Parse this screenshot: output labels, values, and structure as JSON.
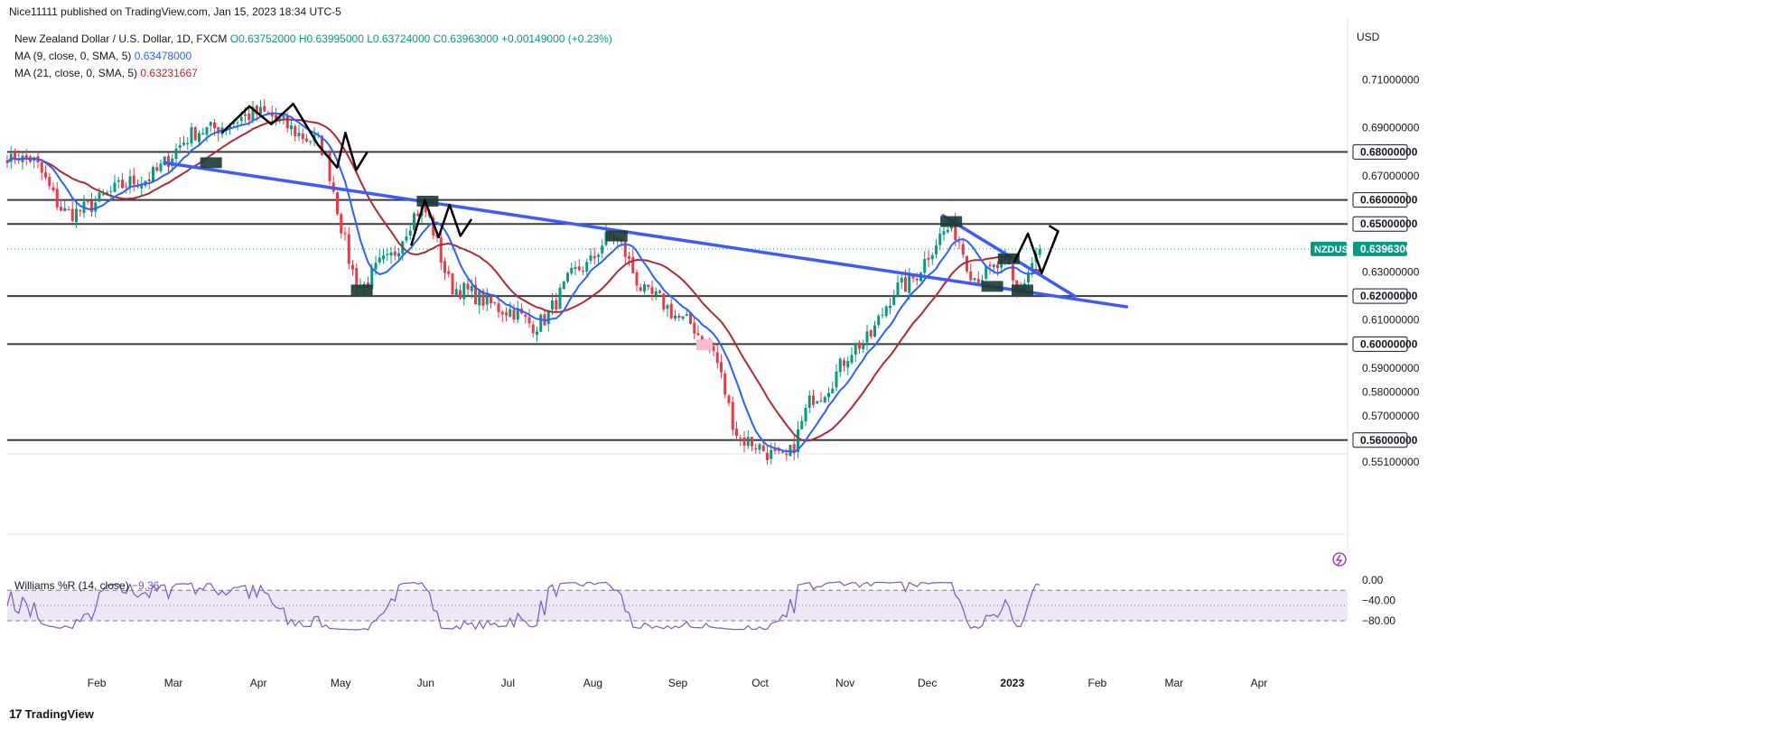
{
  "header": {
    "publisher": "Nice11111 published on TradingView.com, Jan 15, 2023 18:34 UTC-5"
  },
  "legend": {
    "symbol": "New Zealand Dollar / U.S. Dollar, 1D, FXCM",
    "ohlc": "O0.63752000 H0.63995000 L0.63724000 C0.63963000 +0.00149000 (+0.23%)",
    "ma9_label": "MA (9, close, 0, SMA, 5)",
    "ma9_value": "0.63478000",
    "ma21_label": "MA (21, close, 0, SMA, 5)",
    "ma21_value": "0.63231667"
  },
  "williams": {
    "label": "Williams %R (14, close)",
    "value": "−9.36"
  },
  "brand": {
    "name": "TradingView"
  },
  "colors": {
    "bull": "#089981",
    "bear": "#f23645",
    "ma9": "#2962ff",
    "ma21": "#b22833",
    "trend": "#3d5afe",
    "level": "#3b3b3b",
    "wr": "#7e57c2",
    "wr_band": "#ede7f6"
  },
  "chart_data": {
    "type": "candlestick",
    "currency": "USD",
    "symbol_tag": "NZDUSD",
    "last_price": 0.63963,
    "x_labels": [
      "Feb",
      "Mar",
      "Apr",
      "May",
      "Jun",
      "Jul",
      "Aug",
      "Sep",
      "Oct",
      "Nov",
      "Dec",
      "2023",
      "Feb",
      "Mar",
      "Apr"
    ],
    "y_ticks": [
      "0.71000000",
      "0.69000000",
      "0.67000000",
      "0.63000000",
      "0.61000000",
      "0.59000000",
      "0.58000000",
      "0.57000000",
      "0.55100000"
    ],
    "y_tick_values": [
      0.71,
      0.69,
      0.67,
      0.63,
      0.61,
      0.59,
      0.58,
      0.57,
      0.551
    ],
    "horizontal_levels": [
      {
        "value": 0.68,
        "label": "0.68000000"
      },
      {
        "value": 0.66,
        "label": "0.66000000"
      },
      {
        "value": 0.65,
        "label": "0.65000000"
      },
      {
        "value": 0.62,
        "label": "0.62000000"
      },
      {
        "value": 0.6,
        "label": "0.60000000"
      },
      {
        "value": 0.56,
        "label": "0.56000000"
      }
    ],
    "trendlines": [
      {
        "from": [
          "2022-03-01",
          0.6755
        ],
        "to": [
          "2023-02-15",
          0.6155
        ]
      },
      {
        "from": [
          "2022-12-10",
          0.6535
        ],
        "to": [
          "2023-01-27",
          0.62
        ]
      }
    ],
    "anchor_points": [
      {
        "date": "2022-01-10",
        "price": 0.6775
      },
      {
        "date": "2022-01-25",
        "price": 0.6545
      },
      {
        "date": "2022-02-20",
        "price": 0.668
      },
      {
        "date": "2022-03-15",
        "price": 0.689
      },
      {
        "date": "2022-04-05",
        "price": 0.696
      },
      {
        "date": "2022-04-25",
        "price": 0.685
      },
      {
        "date": "2022-05-12",
        "price": 0.624
      },
      {
        "date": "2022-05-20",
        "price": 0.634
      },
      {
        "date": "2022-06-03",
        "price": 0.656
      },
      {
        "date": "2022-06-15",
        "price": 0.623
      },
      {
        "date": "2022-07-05",
        "price": 0.614
      },
      {
        "date": "2022-07-14",
        "price": 0.608
      },
      {
        "date": "2022-08-01",
        "price": 0.632
      },
      {
        "date": "2022-08-11",
        "price": 0.645
      },
      {
        "date": "2022-08-25",
        "price": 0.62
      },
      {
        "date": "2022-09-08",
        "price": 0.609
      },
      {
        "date": "2022-09-15",
        "price": 0.6
      },
      {
        "date": "2022-09-28",
        "price": 0.56
      },
      {
        "date": "2022-10-13",
        "price": 0.552
      },
      {
        "date": "2022-10-25",
        "price": 0.579
      },
      {
        "date": "2022-11-10",
        "price": 0.6
      },
      {
        "date": "2022-11-25",
        "price": 0.624
      },
      {
        "date": "2022-12-13",
        "price": 0.648
      },
      {
        "date": "2022-12-22",
        "price": 0.628
      },
      {
        "date": "2023-01-02",
        "price": 0.633
      },
      {
        "date": "2023-01-06",
        "price": 0.622
      },
      {
        "date": "2023-01-15",
        "price": 0.6396
      }
    ],
    "williams_r": {
      "ticks": [
        "0.00",
        "−40.00",
        "−80.00"
      ],
      "tick_values": [
        0,
        -40,
        -80
      ],
      "band": [
        -20,
        -80
      ],
      "last": -9.36
    }
  }
}
